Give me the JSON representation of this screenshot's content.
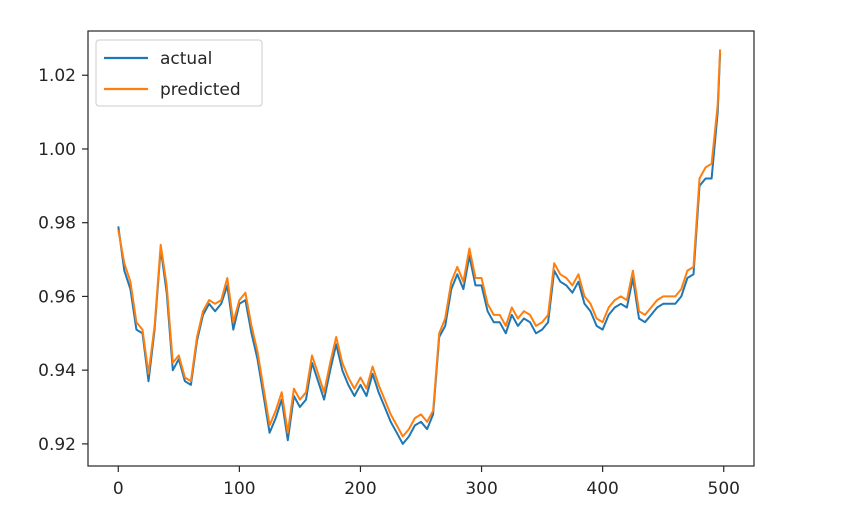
{
  "chart_data": {
    "type": "line",
    "title": "",
    "xlabel": "",
    "ylabel": "",
    "xlim": [
      -25,
      525
    ],
    "ylim": [
      0.914,
      1.032
    ],
    "xticks": [
      0,
      100,
      200,
      300,
      400,
      500
    ],
    "xtick_labels": [
      "0",
      "100",
      "200",
      "300",
      "400",
      "500"
    ],
    "yticks": [
      0.92,
      0.94,
      0.96,
      0.98,
      1.0,
      1.02
    ],
    "ytick_labels": [
      "0.92",
      "0.94",
      "0.96",
      "0.98",
      "1.00",
      "1.02"
    ],
    "grid": false,
    "legend_position": "top-left",
    "x": [
      0,
      5,
      10,
      15,
      20,
      25,
      30,
      35,
      40,
      45,
      50,
      55,
      60,
      65,
      70,
      75,
      80,
      85,
      90,
      95,
      100,
      105,
      110,
      115,
      120,
      125,
      130,
      135,
      140,
      145,
      150,
      155,
      160,
      165,
      170,
      175,
      180,
      185,
      190,
      195,
      200,
      205,
      210,
      215,
      220,
      225,
      230,
      235,
      240,
      245,
      250,
      255,
      260,
      265,
      270,
      275,
      280,
      285,
      290,
      295,
      300,
      305,
      310,
      315,
      320,
      325,
      330,
      335,
      340,
      345,
      350,
      355,
      360,
      365,
      370,
      375,
      380,
      385,
      390,
      395,
      400,
      405,
      410,
      415,
      420,
      425,
      430,
      435,
      440,
      445,
      450,
      455,
      460,
      465,
      470,
      475,
      480,
      485,
      490,
      495,
      497
    ],
    "series": [
      {
        "name": "actual",
        "color": "#1f77b4",
        "values": [
          0.979,
          0.967,
          0.962,
          0.951,
          0.95,
          0.937,
          0.951,
          0.973,
          0.961,
          0.94,
          0.943,
          0.937,
          0.936,
          0.948,
          0.955,
          0.958,
          0.956,
          0.958,
          0.963,
          0.951,
          0.958,
          0.959,
          0.95,
          0.943,
          0.933,
          0.923,
          0.927,
          0.932,
          0.921,
          0.933,
          0.93,
          0.932,
          0.942,
          0.937,
          0.932,
          0.94,
          0.947,
          0.94,
          0.936,
          0.933,
          0.936,
          0.933,
          0.939,
          0.934,
          0.93,
          0.926,
          0.923,
          0.92,
          0.922,
          0.925,
          0.926,
          0.924,
          0.928,
          0.949,
          0.952,
          0.962,
          0.966,
          0.962,
          0.971,
          0.963,
          0.963,
          0.956,
          0.953,
          0.953,
          0.95,
          0.955,
          0.952,
          0.954,
          0.953,
          0.95,
          0.951,
          0.953,
          0.967,
          0.964,
          0.963,
          0.961,
          0.964,
          0.958,
          0.956,
          0.952,
          0.951,
          0.955,
          0.957,
          0.958,
          0.957,
          0.965,
          0.954,
          0.953,
          0.955,
          0.957,
          0.958,
          0.958,
          0.958,
          0.96,
          0.965,
          0.966,
          0.99,
          0.992,
          0.992,
          1.01,
          1.026
        ]
      },
      {
        "name": "predicted",
        "color": "#ff7f0e",
        "values": [
          0.978,
          0.969,
          0.964,
          0.953,
          0.951,
          0.939,
          0.952,
          0.974,
          0.963,
          0.942,
          0.944,
          0.938,
          0.937,
          0.949,
          0.956,
          0.959,
          0.958,
          0.959,
          0.965,
          0.953,
          0.959,
          0.961,
          0.952,
          0.945,
          0.935,
          0.925,
          0.929,
          0.934,
          0.923,
          0.935,
          0.932,
          0.934,
          0.944,
          0.939,
          0.934,
          0.942,
          0.949,
          0.942,
          0.938,
          0.935,
          0.938,
          0.935,
          0.941,
          0.936,
          0.932,
          0.928,
          0.925,
          0.922,
          0.924,
          0.927,
          0.928,
          0.926,
          0.929,
          0.95,
          0.954,
          0.964,
          0.968,
          0.964,
          0.973,
          0.965,
          0.965,
          0.958,
          0.955,
          0.955,
          0.952,
          0.957,
          0.954,
          0.956,
          0.955,
          0.952,
          0.953,
          0.955,
          0.969,
          0.966,
          0.965,
          0.963,
          0.966,
          0.96,
          0.958,
          0.954,
          0.953,
          0.957,
          0.959,
          0.96,
          0.959,
          0.967,
          0.956,
          0.955,
          0.957,
          0.959,
          0.96,
          0.96,
          0.96,
          0.962,
          0.967,
          0.968,
          0.992,
          0.995,
          0.996,
          1.012,
          1.027
        ]
      }
    ]
  }
}
